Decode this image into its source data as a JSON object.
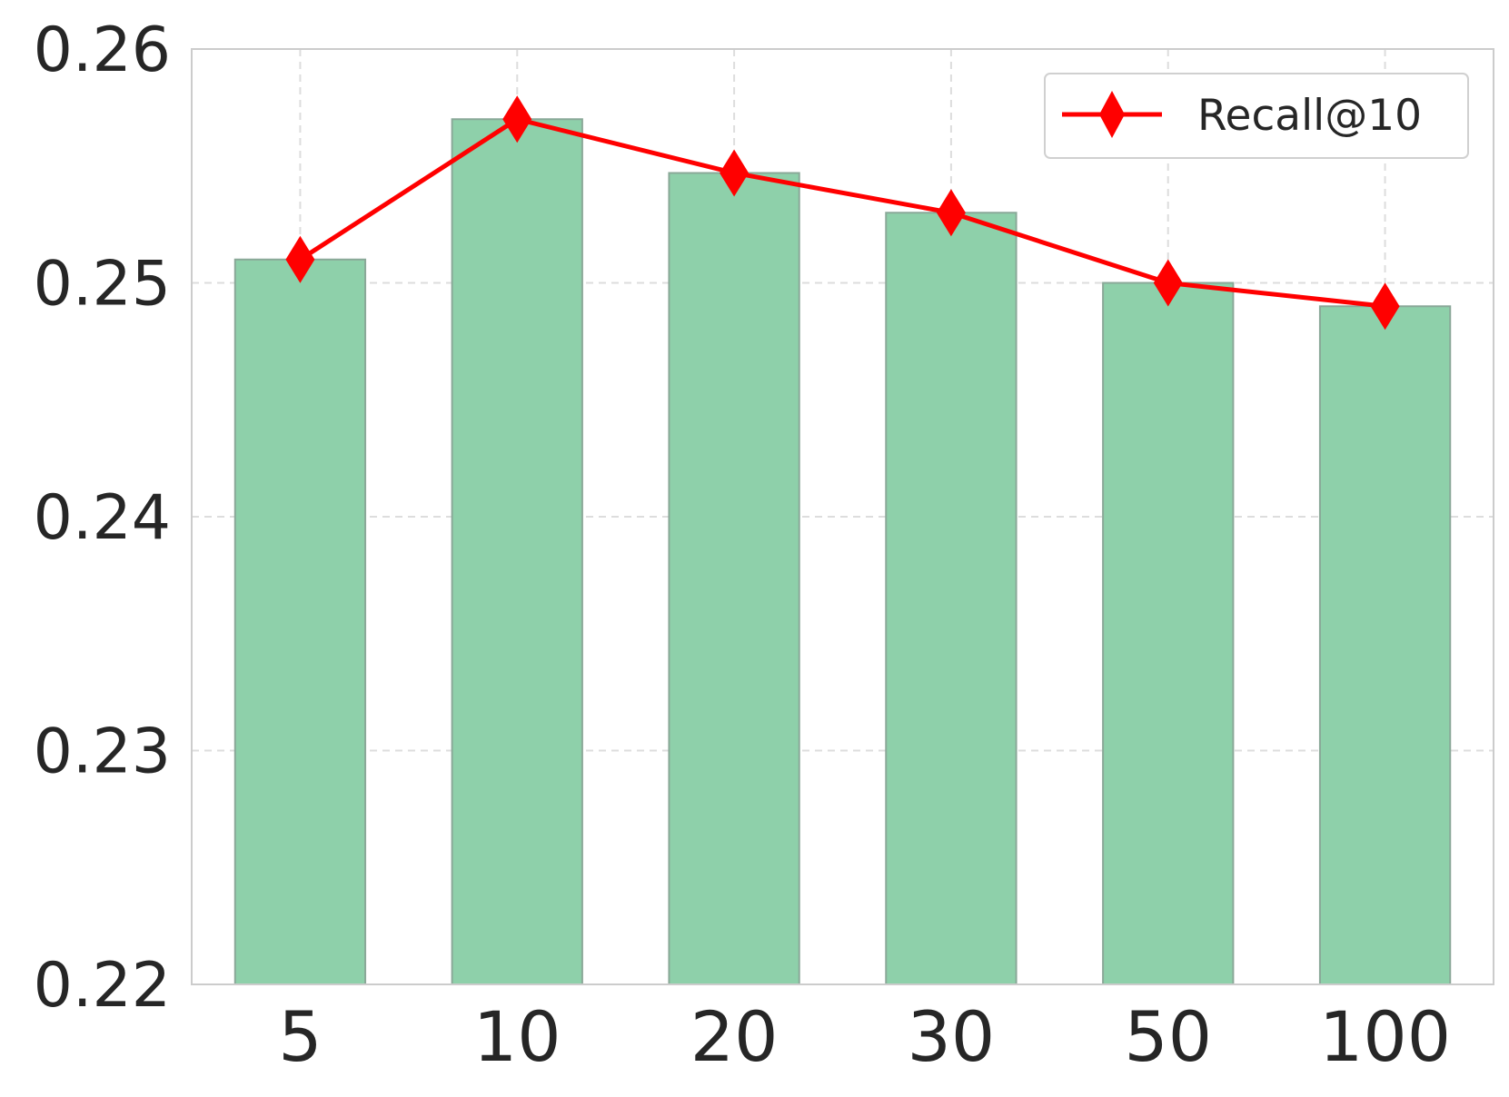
{
  "chart_data": {
    "type": "bar",
    "categories": [
      "5",
      "10",
      "20",
      "30",
      "50",
      "100"
    ],
    "series": [
      {
        "type": "bar",
        "values": [
          0.251,
          0.257,
          0.2547,
          0.253,
          0.25,
          0.249
        ],
        "color": "#8ccfa8"
      },
      {
        "type": "line",
        "name": "Recall@10",
        "values": [
          0.251,
          0.257,
          0.2547,
          0.253,
          0.25,
          0.249
        ],
        "color": "#ff0000",
        "marker": "diamond"
      }
    ],
    "yticks": [
      "0.22",
      "0.23",
      "0.24",
      "0.25",
      "0.26"
    ],
    "ylim": [
      0.22,
      0.26
    ],
    "title": "",
    "xlabel": "",
    "ylabel": "",
    "grid": true,
    "legend": {
      "position": "top-right",
      "entries": [
        "Recall@10"
      ]
    },
    "colors": {
      "bar": "#8ccfa8",
      "bar_edge": "#8aa898",
      "line": "#ff0000",
      "grid": "#dddddd",
      "frame": "#cccccc",
      "text": "#262626"
    }
  }
}
